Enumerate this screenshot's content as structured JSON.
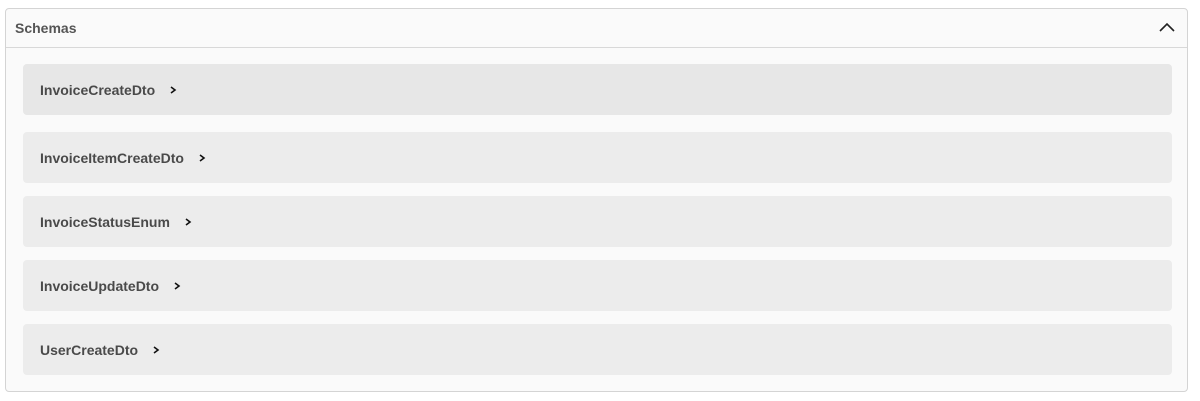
{
  "section": {
    "title": "Schemas",
    "expanded": true,
    "toggle_icon": "chevron-up-icon"
  },
  "schemas": [
    {
      "name": "InvoiceCreateDto"
    },
    {
      "name": "InvoiceItemCreateDto"
    },
    {
      "name": "InvoiceStatusEnum"
    },
    {
      "name": "InvoiceUpdateDto"
    },
    {
      "name": "UserCreateDto"
    }
  ]
}
